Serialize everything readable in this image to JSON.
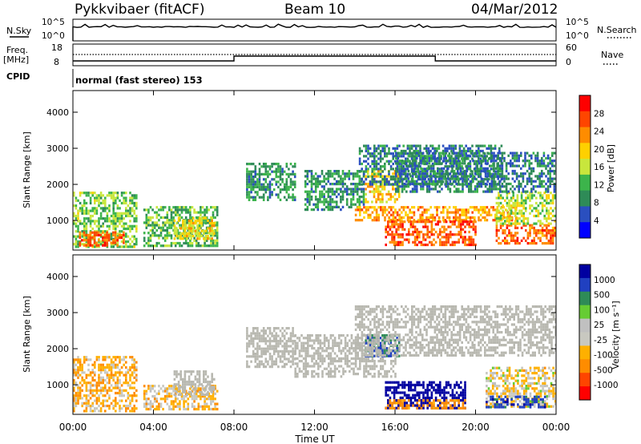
{
  "header": {
    "station": "Pykkvibaer (fitACF)",
    "beam": "Beam 10",
    "date": "04/Mar/2012"
  },
  "params": {
    "nsky_label": "N.Sky",
    "nsky_ticks": [
      "10^5",
      "10^0"
    ],
    "nsearch_label": "N.Search",
    "freq_label": "Freq.",
    "freq_unit": "[MHz]",
    "freq_ticks": [
      "18",
      "8"
    ],
    "nave_label": "Nave",
    "nave_ticks": [
      "60",
      "0"
    ],
    "cpid_label": "CPID",
    "cpid_text": "normal (fast stereo) 153"
  },
  "colors": {
    "power_scale": [
      "#0000ff",
      "#2a4fbf",
      "#2e8b57",
      "#3cb44b",
      "#c8e63c",
      "#ffd000",
      "#ff8c00",
      "#ff4500",
      "#ff0000"
    ],
    "velocity_scale": [
      "#ff0000",
      "#ff4500",
      "#ff8c00",
      "#ffb000",
      "#c8c8c0",
      "#c0c0c0",
      "#66cc33",
      "#2e8b57",
      "#2040c0",
      "#0000a0"
    ],
    "ground_scatter": "#b8b8b0"
  },
  "chart_data": [
    {
      "type": "heatmap",
      "panel": "power",
      "ylabel": "Slant Range [km]",
      "yticks": [
        "4000",
        "3000",
        "2000",
        "1000"
      ],
      "xticks": [
        "00:00",
        "04:00",
        "08:00",
        "12:00",
        "16:00",
        "20:00",
        "00:00"
      ],
      "colorbar_label": "Power [dB]",
      "colorbar_ticks": [
        "28",
        "24",
        "20",
        "16",
        "12",
        "8",
        "4"
      ],
      "ylim": [
        180,
        4600
      ],
      "xlim_hours": [
        0,
        24
      ],
      "regions": [
        {
          "x": [
            0,
            3.2
          ],
          "y": [
            300,
            1800
          ],
          "v": 14
        },
        {
          "x": [
            0.3,
            2.5
          ],
          "y": [
            300,
            700
          ],
          "v": 26
        },
        {
          "x": [
            3.5,
            7.2
          ],
          "y": [
            300,
            1400
          ],
          "v": 12
        },
        {
          "x": [
            5,
            7
          ],
          "y": [
            500,
            1100
          ],
          "v": 18
        },
        {
          "x": [
            8.6,
            11
          ],
          "y": [
            1600,
            2600
          ],
          "v": 10
        },
        {
          "x": [
            11.5,
            14.5
          ],
          "y": [
            1300,
            2400
          ],
          "v": 10
        },
        {
          "x": [
            14.5,
            16.2
          ],
          "y": [
            1500,
            2400
          ],
          "v": 20
        },
        {
          "x": [
            14,
            22
          ],
          "y": [
            1000,
            1400
          ],
          "v": 22
        },
        {
          "x": [
            15.5,
            20
          ],
          "y": [
            350,
            1000
          ],
          "v": 26
        },
        {
          "x": [
            21,
            24
          ],
          "y": [
            350,
            900
          ],
          "v": 25
        },
        {
          "x": [
            21,
            24
          ],
          "y": [
            900,
            1800
          ],
          "v": 16
        },
        {
          "x": [
            14.2,
            21.3
          ],
          "y": [
            2000,
            3100
          ],
          "v": 8
        },
        {
          "x": [
            16,
            24
          ],
          "y": [
            1800,
            2900
          ],
          "v": 8
        }
      ]
    },
    {
      "type": "heatmap",
      "panel": "velocity",
      "ylabel": "Slant Range [km]",
      "yticks": [
        "4000",
        "3000",
        "2000",
        "1000"
      ],
      "xticks": [
        "00:00",
        "04:00",
        "08:00",
        "12:00",
        "16:00",
        "20:00",
        "00:00"
      ],
      "xlabel": "Time UT",
      "colorbar_label": "Velocity [m s⁻¹]",
      "colorbar_ticks": [
        "1000",
        "500",
        "100",
        "25",
        "-25",
        "-100",
        "-500",
        "-1000"
      ],
      "ylim": [
        180,
        4600
      ],
      "xlim_hours": [
        0,
        24
      ],
      "regions": [
        {
          "x": [
            0,
            3.2
          ],
          "y": [
            300,
            1800
          ],
          "v": -150
        },
        {
          "x": [
            3.5,
            7.2
          ],
          "y": [
            300,
            1000
          ],
          "v": -120
        },
        {
          "x": [
            5,
            7
          ],
          "y": [
            700,
            1400
          ],
          "v": 0,
          "g": 1
        },
        {
          "x": [
            8.6,
            11
          ],
          "y": [
            1500,
            2600
          ],
          "v": 0,
          "g": 1
        },
        {
          "x": [
            11,
            16
          ],
          "y": [
            1200,
            2400
          ],
          "v": 0,
          "g": 1
        },
        {
          "x": [
            14.5,
            16.2
          ],
          "y": [
            1800,
            2400
          ],
          "v": 300
        },
        {
          "x": [
            15.5,
            19.5
          ],
          "y": [
            350,
            1100
          ],
          "v": 800
        },
        {
          "x": [
            15.5,
            19.5
          ],
          "y": [
            350,
            600
          ],
          "v": -300
        },
        {
          "x": [
            20.5,
            24
          ],
          "y": [
            400,
            1500
          ],
          "v": -80
        },
        {
          "x": [
            20.5,
            23.5
          ],
          "y": [
            400,
            700
          ],
          "v": 400
        },
        {
          "x": [
            14,
            24
          ],
          "y": [
            1800,
            3200
          ],
          "v": 0,
          "g": 1
        }
      ]
    }
  ]
}
